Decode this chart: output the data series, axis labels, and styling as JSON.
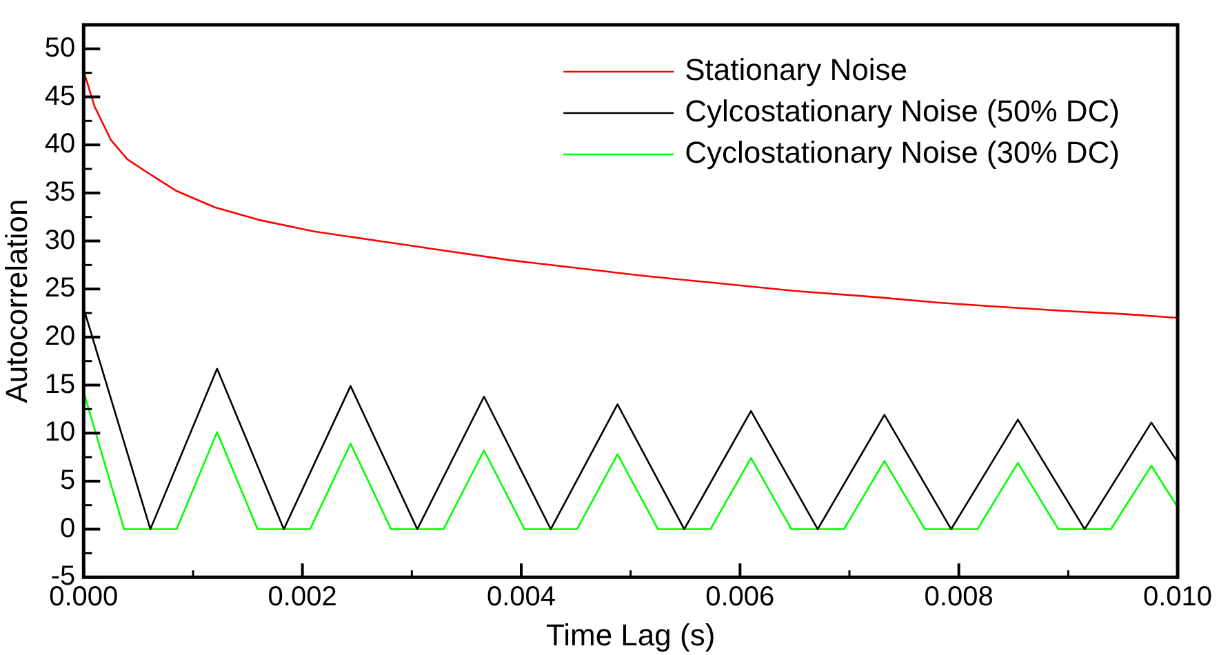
{
  "chart_data": {
    "type": "line",
    "xlabel": "Time Lag (s)",
    "ylabel": "Autocorrelation",
    "xlim": [
      0,
      0.01
    ],
    "ylim": [
      -5,
      52.5
    ],
    "xticks": [
      {
        "value": 0,
        "label": "0.000"
      },
      {
        "value": 0.002,
        "label": "0.002"
      },
      {
        "value": 0.004,
        "label": "0.004"
      },
      {
        "value": 0.006,
        "label": "0.006"
      },
      {
        "value": 0.008,
        "label": "0.008"
      },
      {
        "value": 0.01,
        "label": "0.010"
      }
    ],
    "yticks": [
      -5,
      0,
      5,
      10,
      15,
      20,
      25,
      30,
      35,
      40,
      45,
      50
    ],
    "grid": false,
    "legend": "top right",
    "marker": "none",
    "line_style": "solid",
    "series": [
      {
        "name": "Stationary Noise",
        "color": "#ff0000",
        "x": [
          0,
          0.0001,
          0.00025,
          0.0004,
          0.0006,
          0.00085,
          0.0012,
          0.0016,
          0.0021,
          0.0027,
          0.0033,
          0.0039,
          0.0045,
          0.0051,
          0.0058,
          0.0065,
          0.0072,
          0.0078,
          0.0083,
          0.009,
          0.0095,
          0.01
        ],
        "values": [
          47.7,
          44,
          40.5,
          38.5,
          37,
          35.2,
          33.5,
          32.2,
          31,
          30,
          29,
          28,
          27.2,
          26.4,
          25.6,
          24.8,
          24.2,
          23.6,
          23.2,
          22.7,
          22.4,
          22
        ]
      },
      {
        "name": "Cylcostationary Noise (50% DC)",
        "color": "#000000",
        "x": [
          0,
          0.00061,
          0.00122,
          0.00183,
          0.00244,
          0.00305,
          0.00366,
          0.00427,
          0.00488,
          0.00549,
          0.0061,
          0.00671,
          0.00732,
          0.00793,
          0.00854,
          0.00915,
          0.00976,
          0.01
        ],
        "values": [
          23,
          0,
          16.7,
          0,
          14.9,
          0,
          13.8,
          0,
          13,
          0,
          12.3,
          0,
          11.9,
          0,
          11.4,
          0,
          11.1,
          7
        ]
      },
      {
        "name": "Cyclostationary Noise (30% DC)",
        "color": "#00ff00",
        "x": [
          0,
          0.00037,
          0.00085,
          0.00122,
          0.00159,
          0.00207,
          0.00244,
          0.00281,
          0.00329,
          0.00366,
          0.00403,
          0.00451,
          0.00488,
          0.00525,
          0.00573,
          0.0061,
          0.00647,
          0.00695,
          0.00732,
          0.00769,
          0.00817,
          0.00854,
          0.00891,
          0.00939,
          0.00976,
          0.01
        ],
        "values": [
          14.3,
          0,
          0,
          10.1,
          0,
          0,
          8.9,
          0,
          0,
          8.2,
          0,
          0,
          7.8,
          0,
          0,
          7.4,
          0,
          0,
          7.1,
          0,
          0,
          6.9,
          0,
          0,
          6.6,
          2.3
        ]
      }
    ]
  }
}
